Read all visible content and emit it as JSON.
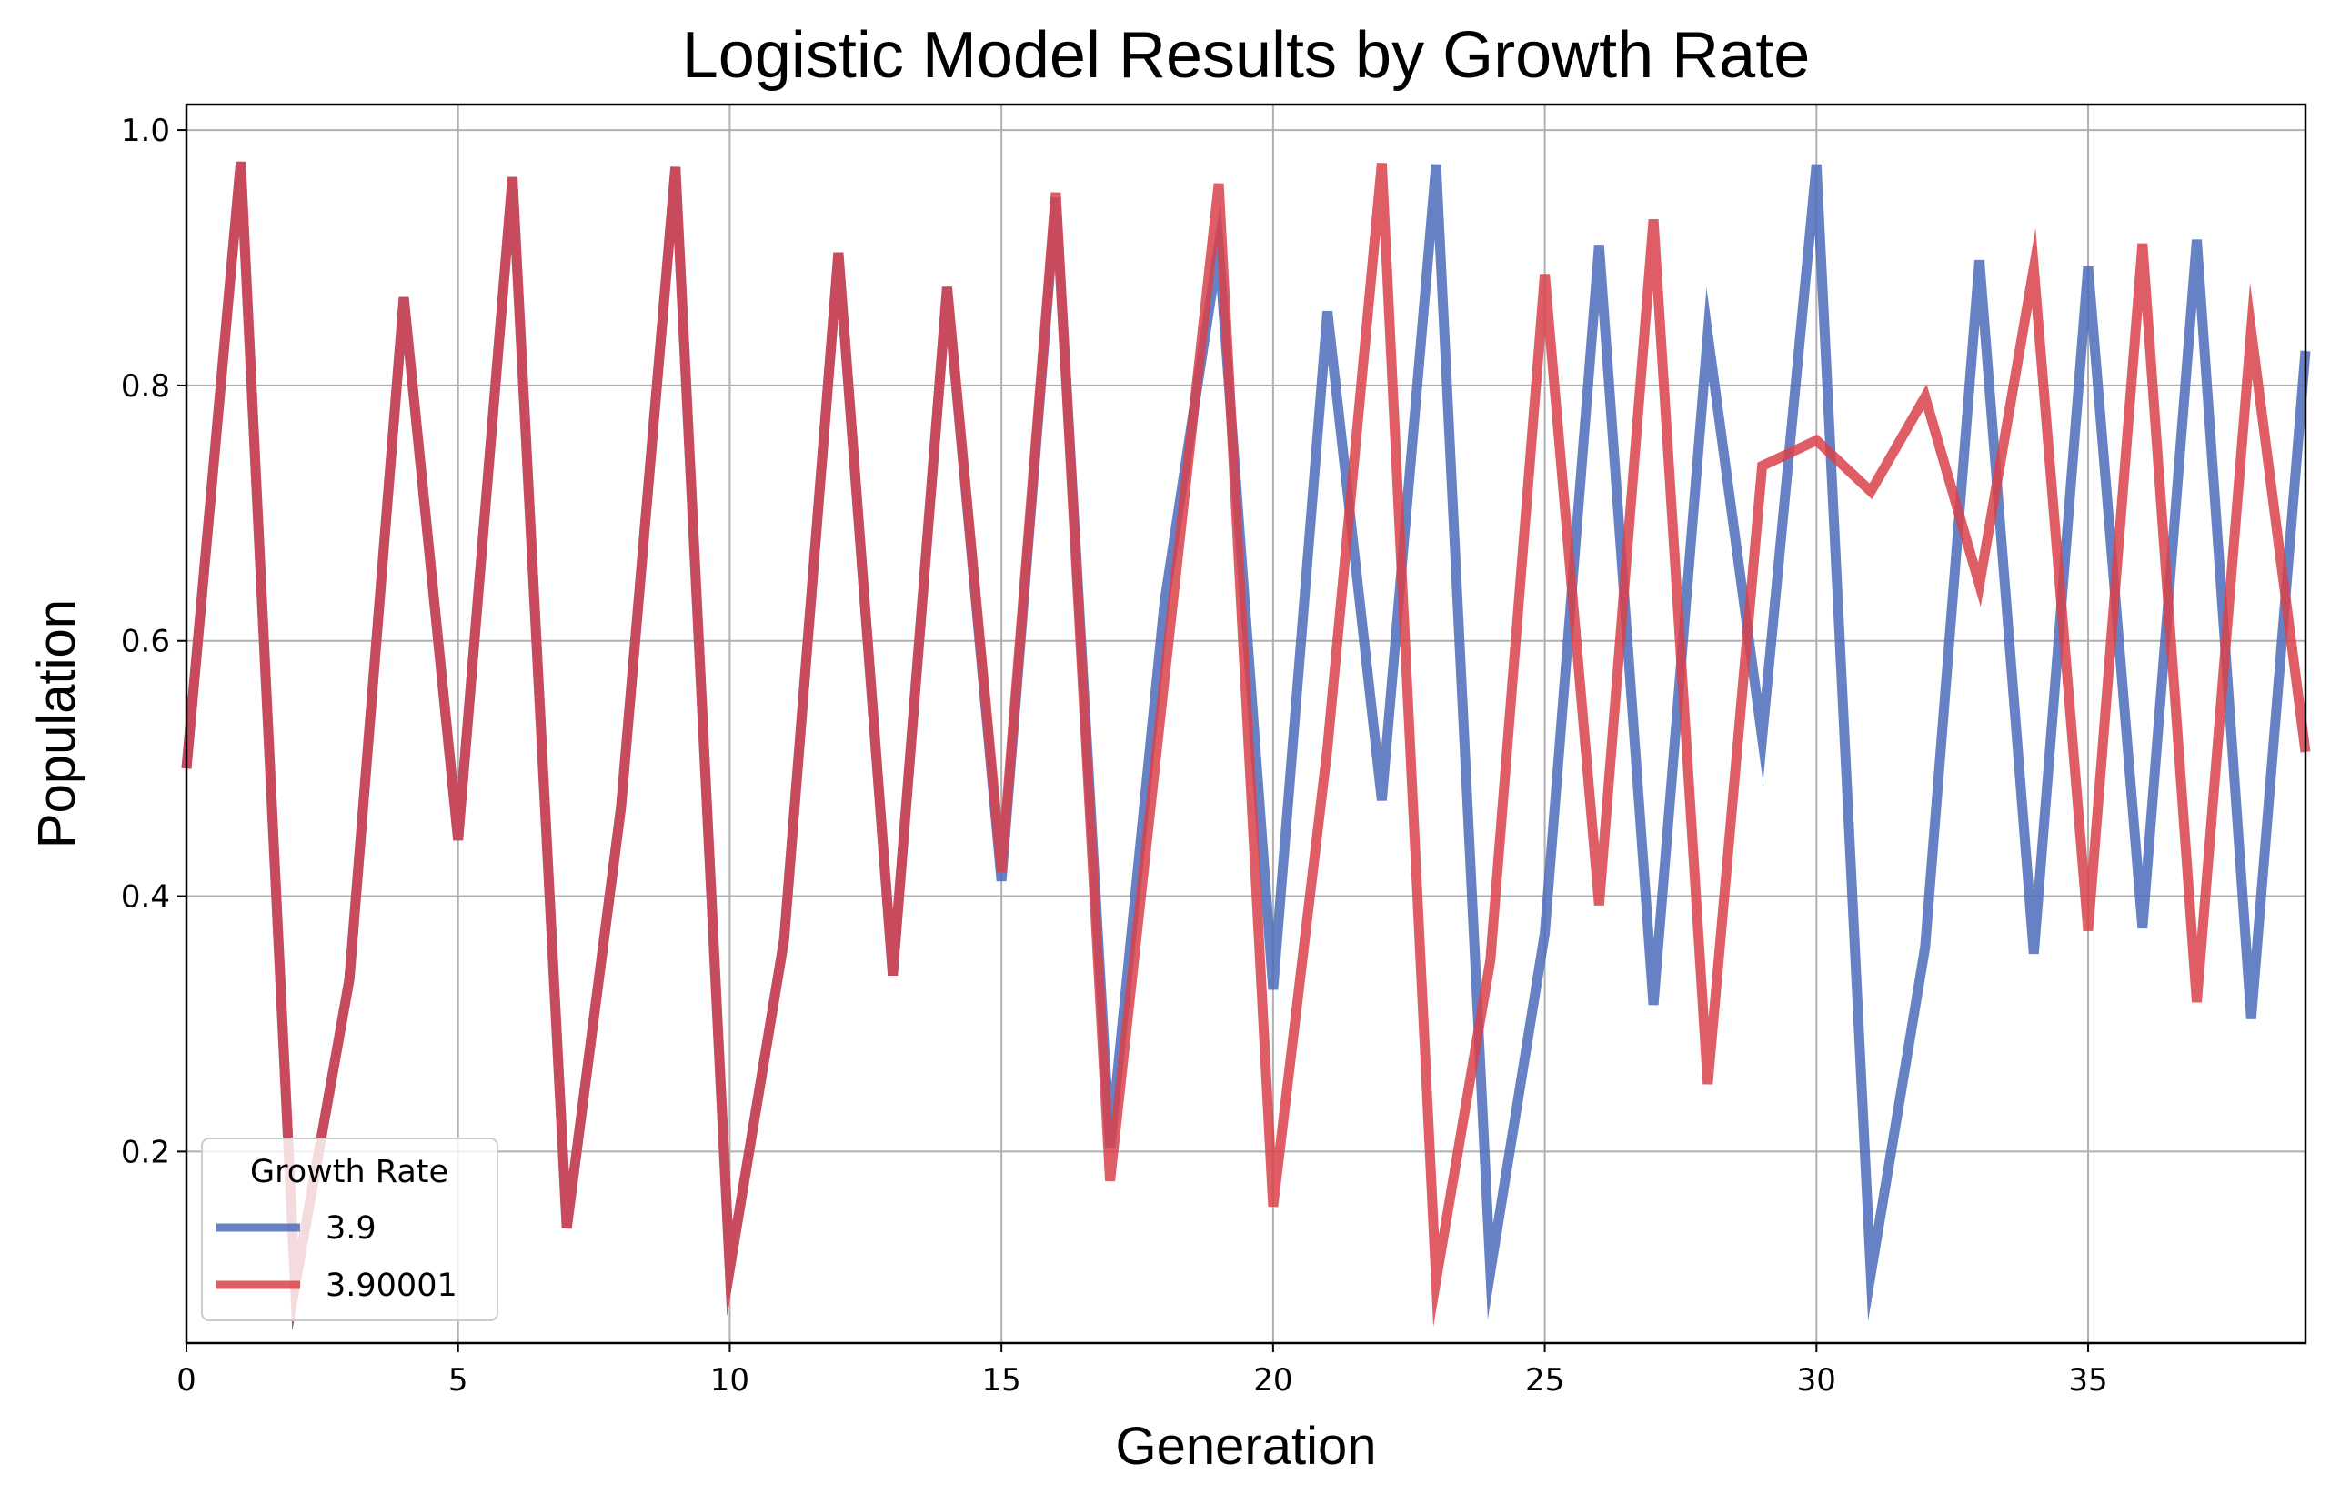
{
  "chart_data": {
    "type": "line",
    "title": "Logistic Model Results by Growth Rate",
    "xlabel": "Generation",
    "ylabel": "Population",
    "xlim": [
      0,
      39
    ],
    "ylim": [
      0.05,
      1.02
    ],
    "xticks": [
      0,
      5,
      10,
      15,
      20,
      25,
      30,
      35
    ],
    "yticks": [
      0.2,
      0.4,
      0.6,
      0.8,
      1.0
    ],
    "xtick_labels": [
      "0",
      "5",
      "10",
      "15",
      "20",
      "25",
      "30",
      "35"
    ],
    "ytick_labels": [
      "0.2",
      "0.4",
      "0.6",
      "0.8",
      "1.0"
    ],
    "grid": true,
    "legend": {
      "title": "Growth Rate",
      "placement": "lower-left"
    },
    "x": [
      0,
      1,
      2,
      3,
      4,
      5,
      6,
      7,
      8,
      9,
      10,
      11,
      12,
      13,
      14,
      15,
      16,
      17,
      18,
      19,
      20,
      21,
      22,
      23,
      24,
      25,
      26,
      27,
      28,
      29,
      30,
      31,
      32,
      33,
      34,
      35,
      36,
      37,
      38,
      39
    ],
    "series": [
      {
        "name": "3.9",
        "color": "#4c6bbb",
        "values": [
          0.5,
          0.975,
          0.095,
          0.335,
          0.869,
          0.444,
          0.963,
          0.14,
          0.47,
          0.971,
          0.108,
          0.366,
          0.904,
          0.338,
          0.877,
          0.412,
          0.947,
          0.203,
          0.63,
          0.909,
          0.327,
          0.858,
          0.475,
          0.973,
          0.106,
          0.371,
          0.91,
          0.315,
          0.84,
          0.524,
          0.973,
          0.104,
          0.36,
          0.898,
          0.355,
          0.893,
          0.375,
          0.914,
          0.304,
          0.827
        ]
      },
      {
        "name": "3.90001",
        "color": "#d9424a",
        "values": [
          0.5,
          0.975,
          0.095,
          0.335,
          0.869,
          0.444,
          0.963,
          0.14,
          0.47,
          0.971,
          0.108,
          0.366,
          0.904,
          0.338,
          0.877,
          0.419,
          0.951,
          0.177,
          0.57,
          0.958,
          0.157,
          0.516,
          0.974,
          0.099,
          0.35,
          0.887,
          0.393,
          0.93,
          0.253,
          0.737,
          0.757,
          0.717,
          0.791,
          0.644,
          0.892,
          0.373,
          0.911,
          0.317,
          0.843,
          0.513
        ]
      }
    ]
  }
}
